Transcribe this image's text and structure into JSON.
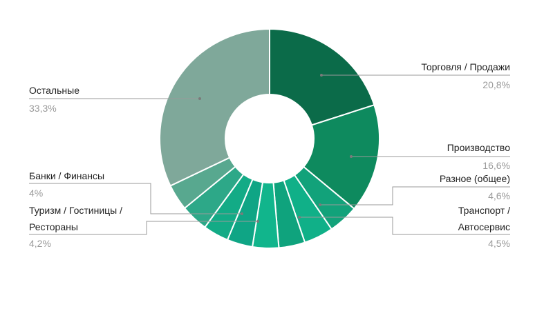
{
  "chart_data": {
    "type": "pie",
    "donut": true,
    "categories": [
      "Торговля / Продажи",
      "Производство",
      "Разное (общее)",
      "Транспорт / Автосервис",
      "",
      "",
      "",
      "",
      "Туризм / Гостиницы / Рестораны",
      "Банки / Финансы",
      "Остальные"
    ],
    "values": [
      20.8,
      16.6,
      4.6,
      4.5,
      4.0,
      4.0,
      3.9,
      3.9,
      4.2,
      4.0,
      33.3
    ],
    "value_labels": [
      "20,8%",
      "16,6%",
      "4,6%",
      "4,5%",
      "",
      "",
      "",
      "",
      "4,2%",
      "4%",
      "33,3%"
    ],
    "colors": [
      "#0b6b49",
      "#0e8a5e",
      "#12a27a",
      "#10b088",
      "#0fa37d",
      "#11b58c",
      "#0fa585",
      "#13ab86",
      "#2da888",
      "#58a88f",
      "#7fa89a"
    ],
    "title": "",
    "legend": "none"
  },
  "labels": {
    "trade": {
      "name": "Торговля / Продажи",
      "pct": "20,8%"
    },
    "production": {
      "name": "Производство",
      "pct": "16,6%"
    },
    "misc": {
      "name": "Разное (общее)",
      "pct": "4,6%"
    },
    "transport": {
      "line1": "Транспорт /",
      "line2": "Автосервис",
      "pct": "4,5%"
    },
    "other": {
      "name": "Остальные",
      "pct": "33,3%"
    },
    "banks": {
      "name": "Банки / Финансы",
      "pct": "4%"
    },
    "tourism": {
      "line1": "Туризм / Гостиницы /",
      "line2": "Рестораны",
      "pct": "4,2%"
    }
  }
}
